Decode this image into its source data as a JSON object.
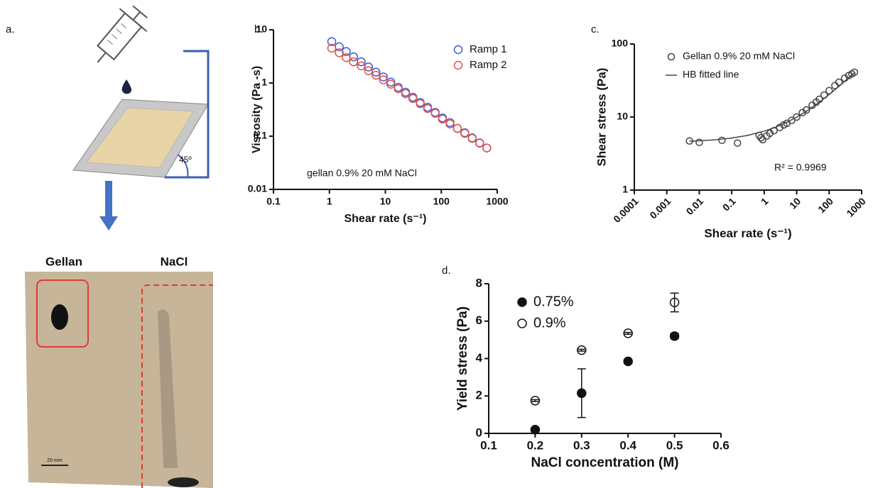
{
  "panel_a": {
    "label": "a.",
    "left_label": "Gellan",
    "right_label": "NaCl",
    "angle_label": "45º",
    "scale_label": "20 mm"
  },
  "chart_data": [
    {
      "type": "scatter",
      "label": "b.",
      "xlabel": "Shear rate (s⁻¹)",
      "ylabel": "Viscosity (Pa -s)",
      "annotation": "gellan 0.9% 20 mM NaCl",
      "xlog": true,
      "ylog": true,
      "xlim": [
        0.1,
        1000
      ],
      "ylim": [
        0.01,
        10
      ],
      "xticks": [
        0.1,
        1,
        10,
        100,
        1000
      ],
      "yticks": [
        0.01,
        0.1,
        1,
        10
      ],
      "grid": false,
      "legend": "top-right",
      "x": [
        1.1,
        1.5,
        2,
        2.7,
        3.7,
        5,
        6.8,
        9.2,
        12.5,
        17,
        23,
        31,
        42,
        57,
        78,
        105,
        143,
        194,
        263,
        357,
        485,
        650
      ],
      "series": [
        {
          "name": "Ramp 1",
          "color": "#3a5bd9",
          "marker": "open",
          "values": [
            6.0,
            4.8,
            3.9,
            3.1,
            2.5,
            2.0,
            1.6,
            1.3,
            1.04,
            0.83,
            0.67,
            0.54,
            0.43,
            0.35,
            0.28,
            0.22,
            0.18,
            0.14,
            0.116,
            0.093,
            0.075,
            0.06
          ]
        },
        {
          "name": "Ramp 2",
          "color": "#e0524a",
          "marker": "open",
          "values": [
            4.5,
            3.7,
            3.0,
            2.5,
            2.1,
            1.7,
            1.4,
            1.15,
            0.95,
            0.78,
            0.63,
            0.51,
            0.41,
            0.33,
            0.27,
            0.21,
            0.17,
            0.14,
            0.113,
            0.091,
            0.074,
            0.06
          ]
        }
      ]
    },
    {
      "type": "scatter",
      "label": "c.",
      "xlabel": "Shear rate (s⁻¹)",
      "ylabel": "Shear stress (Pa)",
      "annotation": "R² = 0.9969",
      "xlog": true,
      "ylog": true,
      "xlim": [
        0.0001,
        1000
      ],
      "ylim": [
        1,
        100
      ],
      "xticks": [
        0.0001,
        0.001,
        0.01,
        0.1,
        1,
        10,
        100,
        1000
      ],
      "yticks": [
        1,
        10,
        100
      ],
      "xtick_angle": -45,
      "grid": false,
      "legend": "top-left",
      "series": [
        {
          "name": "Gellan 0.9% 20 mM NaCl",
          "color": "#444444",
          "marker": "open",
          "x": [
            0.005,
            0.01,
            0.05,
            0.15,
            0.7,
            0.8,
            0.9,
            1.2,
            1.5,
            2,
            3,
            4,
            5,
            7,
            10,
            15,
            20,
            30,
            40,
            50,
            70,
            100,
            150,
            200,
            300,
            400,
            500,
            600
          ],
          "values": [
            4.7,
            4.5,
            4.8,
            4.4,
            5.6,
            5.2,
            4.9,
            5.5,
            6.0,
            6.5,
            7.2,
            7.8,
            8.2,
            9.0,
            10,
            11.5,
            12.5,
            14.5,
            16,
            17.5,
            20,
            23,
            27,
            30,
            34,
            37,
            39,
            41
          ]
        },
        {
          "name": "HB fitted line",
          "color": "#444444",
          "marker": "line",
          "x": [
            0.005,
            0.01,
            0.03,
            0.1,
            0.3,
            1,
            2,
            5,
            10,
            20,
            50,
            100,
            200,
            400,
            600
          ],
          "values": [
            4.67,
            4.73,
            4.88,
            5.16,
            5.59,
            6.4,
            7.11,
            8.48,
            9.97,
            12.0,
            16.0,
            20.3,
            26.3,
            34.5,
            40.5
          ]
        }
      ]
    },
    {
      "type": "scatter",
      "label": "d.",
      "xlabel": "NaCl concentration (M)",
      "ylabel": "Yield stress (Pa)",
      "xlog": false,
      "ylog": false,
      "xlim": [
        0.1,
        0.6
      ],
      "ylim": [
        0,
        8
      ],
      "xticks": [
        0.1,
        0.2,
        0.3,
        0.4,
        0.5,
        0.6
      ],
      "yticks": [
        0,
        2,
        4,
        6,
        8
      ],
      "grid": false,
      "legend": "top-left",
      "x": [
        0.2,
        0.3,
        0.4,
        0.5
      ],
      "series": [
        {
          "name": "0.75%",
          "color": "#111111",
          "marker": "filled",
          "values": [
            0.2,
            2.15,
            3.85,
            5.2
          ],
          "errors": [
            0.1,
            1.3,
            0.05,
            0.15
          ]
        },
        {
          "name": "0.9%",
          "color": "#111111",
          "marker": "open",
          "values": [
            1.75,
            4.45,
            5.35,
            7.0
          ],
          "errors": [
            0.05,
            0.05,
            0.05,
            0.5
          ]
        }
      ]
    }
  ]
}
